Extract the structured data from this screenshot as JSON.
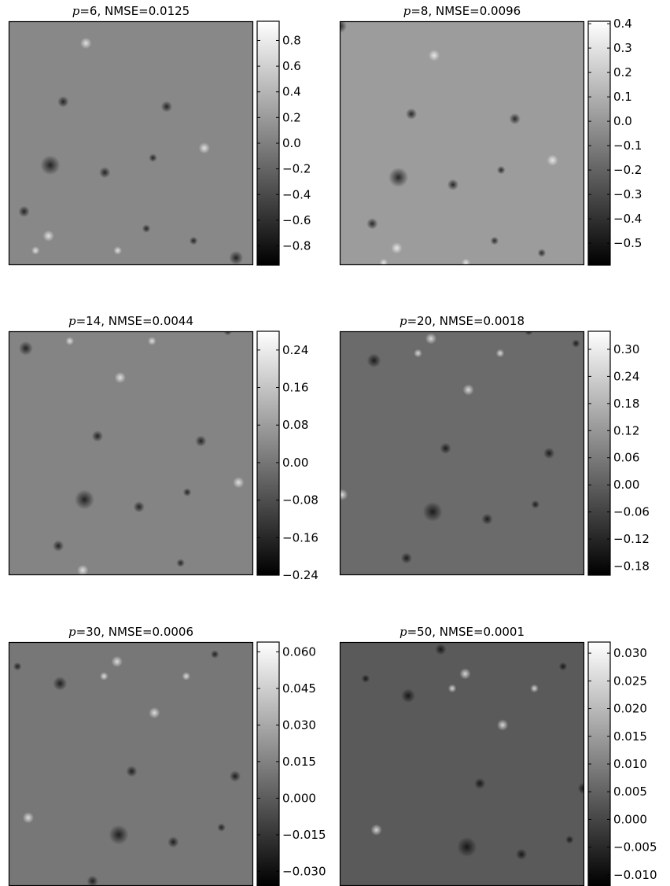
{
  "chart_data": [
    {
      "type": "heatmap",
      "title_var": "p",
      "title_rest": "=6,  NMSE=0.0125",
      "p": 6,
      "nmse": 0.0125,
      "colorbar": {
        "min": -0.95,
        "max": 0.95,
        "ticks": [
          0.8,
          0.6,
          0.4,
          0.2,
          0.0,
          -0.2,
          -0.4,
          -0.6,
          -0.8
        ],
        "tick_labels": [
          "0.8",
          "0.6",
          "0.4",
          "0.2",
          "0.0",
          "−0.2",
          "−0.4",
          "−0.6",
          "−0.8"
        ]
      },
      "background_gray": "#888888"
    },
    {
      "type": "heatmap",
      "title_var": "p",
      "title_rest": "=8,  NMSE=0.0096",
      "p": 8,
      "nmse": 0.0096,
      "colorbar": {
        "min": -0.59,
        "max": 0.41,
        "ticks": [
          0.4,
          0.3,
          0.2,
          0.1,
          0.0,
          -0.1,
          -0.2,
          -0.3,
          -0.4,
          -0.5
        ],
        "tick_labels": [
          "0.4",
          "0.3",
          "0.2",
          "0.1",
          "0.0",
          "−0.1",
          "−0.2",
          "−0.3",
          "−0.4",
          "−0.5"
        ]
      },
      "background_gray": "#9c9c9c"
    },
    {
      "type": "heatmap",
      "title_var": "p",
      "title_rest": "=14,  NMSE=0.0044",
      "p": 14,
      "nmse": 0.0044,
      "colorbar": {
        "min": -0.24,
        "max": 0.28,
        "ticks": [
          0.24,
          0.16,
          0.08,
          0.0,
          -0.08,
          -0.16,
          -0.24
        ],
        "tick_labels": [
          "0.24",
          "0.16",
          "0.08",
          "0.00",
          "−0.08",
          "−0.16",
          "−0.24"
        ]
      },
      "background_gray": "#848484"
    },
    {
      "type": "heatmap",
      "title_var": "p",
      "title_rest": "=20,  NMSE=0.0018",
      "p": 20,
      "nmse": 0.0018,
      "colorbar": {
        "min": -0.2,
        "max": 0.34,
        "ticks": [
          0.3,
          0.24,
          0.18,
          0.12,
          0.06,
          0.0,
          -0.06,
          -0.12,
          -0.18
        ],
        "tick_labels": [
          "0.30",
          "0.24",
          "0.18",
          "0.12",
          "0.06",
          "0.00",
          "−0.06",
          "−0.12",
          "−0.18"
        ]
      },
      "background_gray": "#6b6b6b"
    },
    {
      "type": "heatmap",
      "title_var": "p",
      "title_rest": "=30,  NMSE=0.0006",
      "p": 30,
      "nmse": 0.0006,
      "colorbar": {
        "min": -0.036,
        "max": 0.064,
        "ticks": [
          0.06,
          0.045,
          0.03,
          0.015,
          0.0,
          -0.015,
          -0.03
        ],
        "tick_labels": [
          "0.060",
          "0.045",
          "0.030",
          "0.015",
          "0.000",
          "−0.015",
          "−0.030"
        ]
      },
      "background_gray": "#777777"
    },
    {
      "type": "heatmap",
      "title_var": "p",
      "title_rest": "=50,  NMSE=0.0001",
      "p": 50,
      "nmse": 0.0001,
      "colorbar": {
        "min": -0.012,
        "max": 0.032,
        "ticks": [
          0.03,
          0.025,
          0.02,
          0.015,
          0.01,
          0.005,
          0.0,
          -0.005,
          -0.01
        ],
        "tick_labels": [
          "0.030",
          "0.025",
          "0.020",
          "0.015",
          "0.010",
          "0.005",
          "0.000",
          "−0.005",
          "−0.010"
        ]
      },
      "background_gray": "#5a5a5a"
    }
  ]
}
